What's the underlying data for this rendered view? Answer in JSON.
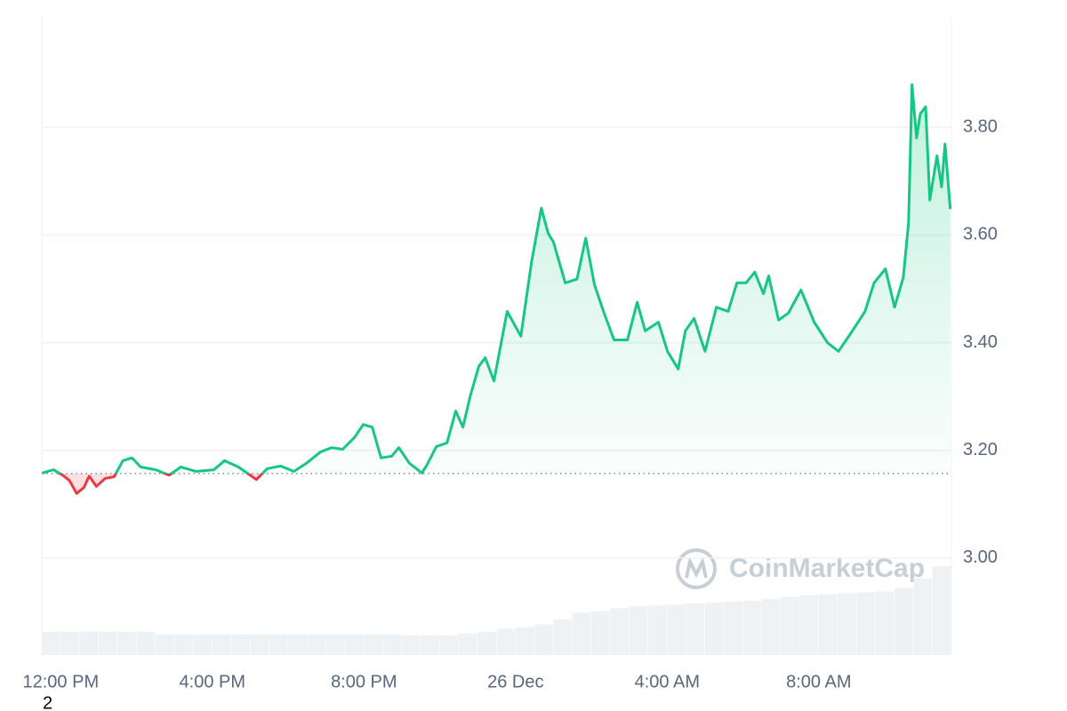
{
  "chart_data": {
    "type": "line",
    "x": [
      -0.49,
      -0.19,
      0.05,
      0.23,
      0.42,
      0.61,
      0.75,
      0.94,
      1.17,
      1.41,
      1.64,
      1.88,
      2.11,
      2.51,
      2.86,
      3.17,
      3.57,
      4.04,
      4.32,
      4.69,
      5.16,
      5.45,
      5.8,
      6.15,
      6.5,
      6.85,
      7.14,
      7.44,
      7.75,
      7.98,
      8.22,
      8.45,
      8.73,
      8.92,
      9.2,
      9.53,
      9.67,
      9.91,
      10.19,
      10.42,
      10.61,
      10.8,
      11.03,
      11.2,
      11.43,
      11.78,
      12.14,
      12.42,
      12.68,
      12.86,
      13.0,
      13.31,
      13.62,
      13.85,
      14.08,
      14.32,
      14.6,
      14.95,
      15.21,
      15.42,
      15.77,
      16.01,
      16.29,
      16.48,
      16.71,
      17.0,
      17.3,
      17.61,
      17.84,
      18.08,
      18.31,
      18.54,
      18.68,
      18.94,
      19.2,
      19.53,
      19.88,
      20.23,
      20.52,
      20.89,
      21.22,
      21.46,
      21.76,
      22.0,
      22.23,
      22.37,
      22.46,
      22.58,
      22.68,
      22.82,
      22.93,
      23.12,
      23.24,
      23.33,
      23.47
    ],
    "series": [
      {
        "name": "Price",
        "up_color": "#16c784",
        "down_color": "#ea3943",
        "values": [
          3.158,
          3.164,
          3.154,
          3.144,
          3.12,
          3.131,
          3.152,
          3.133,
          3.148,
          3.151,
          3.181,
          3.186,
          3.169,
          3.164,
          3.154,
          3.169,
          3.161,
          3.164,
          3.181,
          3.169,
          3.146,
          3.166,
          3.171,
          3.161,
          3.177,
          3.197,
          3.205,
          3.202,
          3.224,
          3.248,
          3.243,
          3.186,
          3.189,
          3.205,
          3.176,
          3.158,
          3.174,
          3.207,
          3.214,
          3.273,
          3.243,
          3.3,
          3.356,
          3.372,
          3.329,
          3.458,
          3.412,
          3.549,
          3.65,
          3.603,
          3.587,
          3.511,
          3.518,
          3.594,
          3.508,
          3.458,
          3.405,
          3.405,
          3.475,
          3.422,
          3.438,
          3.384,
          3.351,
          3.422,
          3.445,
          3.384,
          3.466,
          3.458,
          3.511,
          3.511,
          3.531,
          3.491,
          3.524,
          3.442,
          3.455,
          3.498,
          3.438,
          3.4,
          3.384,
          3.422,
          3.458,
          3.511,
          3.537,
          3.466,
          3.521,
          3.623,
          3.879,
          3.78,
          3.825,
          3.838,
          3.665,
          3.747,
          3.689,
          3.769,
          3.648
        ]
      }
    ],
    "reference_line": 3.157,
    "volume": {
      "color": "#eff2f5",
      "values": [
        25,
        25,
        25,
        25,
        25,
        25,
        22,
        22,
        22,
        22,
        22,
        22,
        22,
        22,
        22,
        22,
        22,
        22,
        22,
        21,
        21,
        21,
        23,
        25,
        28,
        30,
        33,
        38,
        45,
        47,
        50,
        52,
        53,
        54,
        55,
        56,
        57,
        58,
        60,
        62,
        64,
        65,
        66,
        67,
        68,
        72,
        82,
        95
      ]
    },
    "xlim": [
      -0.5,
      23.5
    ],
    "xticks": [
      {
        "value": 0,
        "label": "12:00 PM"
      },
      {
        "value": 4,
        "label": "4:00 PM"
      },
      {
        "value": 8,
        "label": "8:00 PM"
      },
      {
        "value": 12,
        "label": "26 Dec"
      },
      {
        "value": 16,
        "label": "4:00 AM"
      },
      {
        "value": 20,
        "label": "8:00 AM"
      }
    ],
    "ylim": [
      2.82,
      4.0
    ],
    "yticks": [
      {
        "value": 3.0,
        "label": "3.00"
      },
      {
        "value": 3.2,
        "label": "3.20"
      },
      {
        "value": 3.4,
        "label": "3.40"
      },
      {
        "value": 3.6,
        "label": "3.60"
      },
      {
        "value": 3.8,
        "label": "3.80"
      }
    ],
    "grid": true,
    "watermark": "CoinMarketCap",
    "footnote": "2"
  }
}
